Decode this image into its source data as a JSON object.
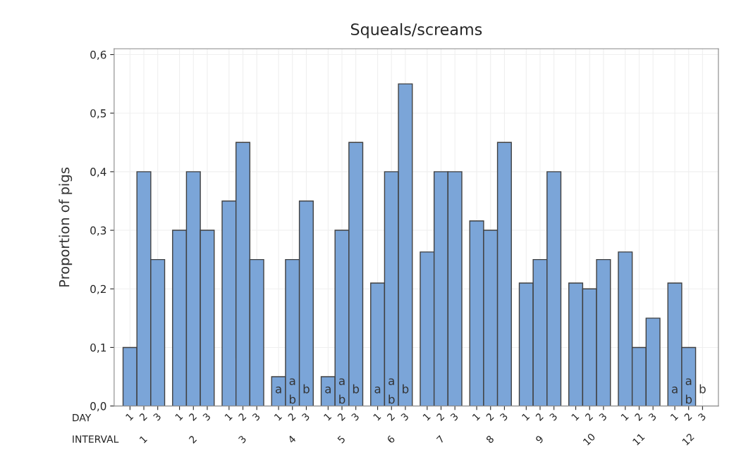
{
  "chart_data": {
    "type": "bar",
    "title": "Squeals/screams",
    "ylabel": "Proportion of pigs",
    "categories": [
      "1",
      "2",
      "3",
      "4",
      "5",
      "6",
      "7",
      "8",
      "9",
      "10",
      "11",
      "12"
    ],
    "series": [
      {
        "name": "1",
        "color": "#7ba5d8",
        "values": [
          0.1,
          0.3,
          0.35,
          0.05,
          0.05,
          0.21,
          0.263,
          0.316,
          0.21,
          0.21,
          0.263,
          0.21
        ]
      },
      {
        "name": "2",
        "color": "#7ba5d8",
        "values": [
          0.4,
          0.4,
          0.45,
          0.25,
          0.3,
          0.4,
          0.4,
          0.3,
          0.25,
          0.2,
          0.1,
          0.1
        ]
      },
      {
        "name": "3",
        "color": "#7ba5d8",
        "values": [
          0.25,
          0.3,
          0.25,
          0.35,
          0.45,
          0.55,
          0.4,
          0.45,
          0.4,
          0.25,
          0.15,
          0.0
        ]
      }
    ],
    "ylim": [
      0,
      0.61
    ],
    "yticks": [
      {
        "value": 0,
        "label": "0,0"
      },
      {
        "value": 0.1,
        "label": "0,1"
      },
      {
        "value": 0.2,
        "label": "0,2"
      },
      {
        "value": 0.3,
        "label": "0,3"
      },
      {
        "value": 0.4,
        "label": "0,4"
      },
      {
        "value": 0.5,
        "label": "0,5"
      },
      {
        "value": 0.6,
        "label": "0,6"
      }
    ],
    "grid": true,
    "annotations": [
      "DAY",
      "INTERVAL",
      "a",
      "a",
      "b",
      "b",
      "a",
      "a",
      "b",
      "b",
      "a",
      "a",
      "b",
      "b",
      "a",
      "a",
      "b",
      "b"
    ]
  }
}
